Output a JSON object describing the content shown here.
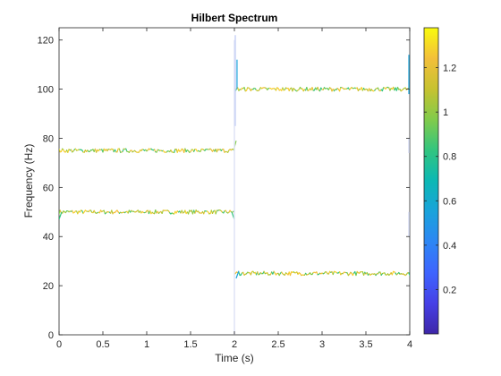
{
  "chart_data": {
    "type": "line",
    "title": "Hilbert Spectrum",
    "xlabel": "Time (s)",
    "ylabel": "Frequency (Hz)",
    "xlim": [
      0,
      4
    ],
    "ylim": [
      0,
      125
    ],
    "xticks": [
      0,
      0.5,
      1,
      1.5,
      2,
      2.5,
      3,
      3.5,
      4
    ],
    "xtick_labels": [
      "0",
      "0.5",
      "1",
      "1.5",
      "2",
      "2.5",
      "3",
      "3.5",
      "4"
    ],
    "yticks": [
      0,
      20,
      40,
      60,
      80,
      100,
      120
    ],
    "ytick_labels": [
      "0",
      "20",
      "40",
      "60",
      "80",
      "100",
      "120"
    ],
    "grid": false,
    "colormap": "parula",
    "colorbar": {
      "clim": [
        0,
        1.38
      ],
      "ticks": [
        0.2,
        0.4,
        0.6,
        0.8,
        1,
        1.2
      ],
      "tick_labels": [
        "0.2",
        "0.4",
        "0.6",
        "0.8",
        "1",
        "1.2"
      ]
    },
    "series": [
      {
        "x_start": 0,
        "x_end": 2,
        "frequency": 50
      },
      {
        "x_start": 0,
        "x_end": 2,
        "frequency": 75
      },
      {
        "x_start": 2,
        "x_end": 4,
        "frequency": 25
      },
      {
        "x_start": 2,
        "x_end": 4,
        "frequency": 100
      }
    ]
  }
}
